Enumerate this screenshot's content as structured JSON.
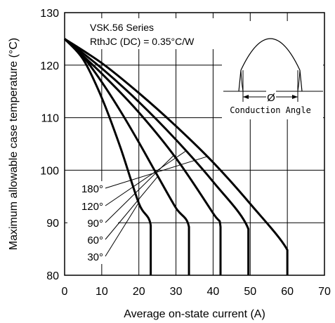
{
  "chart_data": {
    "type": "line",
    "title": "",
    "xlabel": "Average on-state current (A)",
    "ylabel": "Maximum allowable case temperature (°C)",
    "xlim": [
      0,
      70
    ],
    "ylim": [
      80,
      130
    ],
    "xticks": [
      0,
      10,
      20,
      30,
      40,
      50,
      60,
      70
    ],
    "yticks": [
      80,
      90,
      100,
      110,
      120,
      130
    ],
    "grid": true,
    "annotations": {
      "series_title": "VSK.56 Series",
      "rth": "RthJC (DC) = 0.35°C/W",
      "inset_label": "Conduction Angle",
      "inset_symbol": "Ø"
    },
    "series": [
      {
        "name": "30°",
        "x": [
          0,
          5,
          10,
          15,
          20,
          23.2,
          23.2
        ],
        "y": [
          125,
          121.1,
          113.8,
          104.4,
          93.7,
          89.5,
          80
        ]
      },
      {
        "name": "60°",
        "x": [
          0,
          5,
          10,
          15,
          20,
          25,
          30,
          33.5,
          33.5
        ],
        "y": [
          125,
          121.6,
          116.8,
          111.3,
          105.3,
          99.0,
          92.8,
          89.2,
          80
        ]
      },
      {
        "name": "90°",
        "x": [
          0,
          10,
          20,
          30,
          40,
          42,
          42
        ],
        "y": [
          125,
          118.4,
          111.0,
          102.3,
          91.8,
          89.2,
          80
        ]
      },
      {
        "name": "120°",
        "x": [
          0,
          10,
          20,
          30,
          40,
          49.5,
          49.5
        ],
        "y": [
          125,
          119.4,
          113.0,
          105.8,
          97.8,
          88.8,
          80
        ]
      },
      {
        "name": "180°",
        "x": [
          0,
          10,
          20,
          30,
          40,
          50,
          60,
          60
        ],
        "y": [
          125,
          120.4,
          114.7,
          108.4,
          101.5,
          93.6,
          84.8,
          80
        ]
      }
    ]
  }
}
